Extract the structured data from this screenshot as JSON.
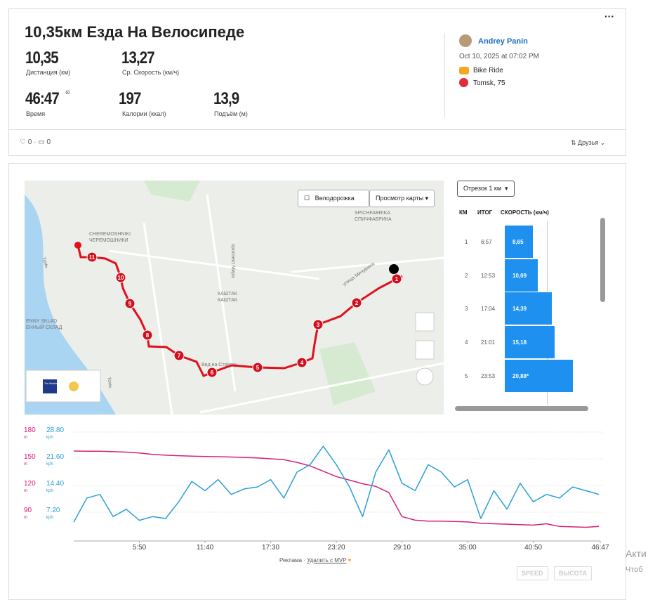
{
  "header": {
    "title": "10,35км Езда На Велосипеде",
    "menu": "···"
  },
  "stats": [
    {
      "value": "10,35",
      "label": "Дистанция (км)"
    },
    {
      "value": "13,27",
      "label": "Ср. Скорость (км/ч)"
    },
    {
      "value": "46:47",
      "label": "Время"
    },
    {
      "value": "197",
      "label": "Калории (ккал)"
    },
    {
      "value": "13,9",
      "label": "Подъём (м)"
    }
  ],
  "user": {
    "name": "Andrey Panin",
    "date": "Oct 10, 2025 at 07:02 PM",
    "activity": "Bike Ride",
    "location": "Tomsk, 75"
  },
  "social": {
    "likes": "0",
    "comments": "0",
    "visibility": "Друзья"
  },
  "map": {
    "bike_lane": "Велодорожка",
    "view": "Просмотр карты",
    "labels": [
      "Томь",
      "CHEREMOSHNIKI",
      "ЧЕРЕМОШНИКИ",
      "проспект Мира",
      "улица Мичурина",
      "КАШТАК",
      "КАШТАК",
      "SPICHFABRIKA",
      "СПИЧФАБРИКА",
      "ENNY SKLAD",
      "ЕННЫЙ СКЛАД",
      "Вид на Стрелку",
      "Томь"
    ],
    "weather": "The Weather Channel",
    "markers": [
      "1",
      "2",
      "3",
      "4",
      "5",
      "6",
      "7",
      "8",
      "9",
      "10",
      "11"
    ]
  },
  "splits": {
    "selector": "Отрезок 1 км",
    "columns": [
      "КМ",
      "ИТОГ",
      "СКОРОСТЬ (км/ч)"
    ],
    "km": [
      "1",
      "2",
      "3",
      "4",
      "5"
    ],
    "total": [
      "6:57",
      "12:53",
      "17:04",
      "21:01",
      "23:53"
    ],
    "speed": [
      8.65,
      10.09,
      14.39,
      15.18,
      20.88
    ],
    "value_labels": [
      "8,65",
      "10,09",
      "14,39",
      "15,18",
      "20,88*"
    ]
  },
  "chart_data": {
    "type": "line",
    "x": [
      0,
      70,
      140,
      210,
      280,
      350,
      420,
      490,
      560,
      630,
      700,
      770,
      840,
      910,
      980,
      1050,
      1120,
      1190,
      1260,
      1330,
      1400,
      1470,
      1540,
      1610,
      1680,
      1750,
      1820,
      1890,
      1960,
      2030,
      2100,
      2170,
      2240,
      2310,
      2380,
      2450,
      2520,
      2590,
      2660,
      2730,
      2800
    ],
    "xlim": [
      0,
      2807
    ],
    "xticks": [
      {
        "value": 350,
        "label": "5:50"
      },
      {
        "value": 700,
        "label": "11:40"
      },
      {
        "value": 1050,
        "label": "17:30"
      },
      {
        "value": 1400,
        "label": "23:20"
      },
      {
        "value": 1750,
        "label": "29:10"
      },
      {
        "value": 2100,
        "label": "35:00"
      },
      {
        "value": 2450,
        "label": "40:50"
      },
      {
        "value": 2807,
        "label": "46:47"
      }
    ],
    "ylim": [
      60,
      180
    ],
    "yticks": [
      90,
      120,
      150,
      180
    ],
    "y_unit": "m",
    "y2lim": [
      0,
      28.8
    ],
    "y2ticks": [
      {
        "value": 7.2,
        "label": "7.20"
      },
      {
        "value": 14.4,
        "label": "14.40"
      },
      {
        "value": 21.6,
        "label": "21.60"
      },
      {
        "value": 28.8,
        "label": "28.80"
      }
    ],
    "y2_unit": "kph",
    "grid": true,
    "series": [
      {
        "name": "ВЫСОТА",
        "color": "#d6207a",
        "values": [
          158.7,
          158.5,
          158.5,
          158,
          157.5,
          156.5,
          155,
          154,
          153.5,
          153,
          152.5,
          152.4,
          152,
          151.5,
          151,
          150,
          149,
          146,
          142,
          136,
          130,
          126,
          122,
          119,
          112,
          85,
          81,
          80,
          80,
          79.5,
          79,
          77.5,
          77,
          76.5,
          76,
          75.5,
          77,
          74,
          73.5,
          73,
          74
        ]
      },
      {
        "name": "SPEED",
        "color": "#2a9fd8",
        "axis": "y2",
        "values": [
          4.5,
          11,
          12,
          6,
          8,
          5,
          6,
          5.5,
          10,
          15.5,
          13,
          16,
          12,
          13.5,
          14,
          16,
          11,
          18,
          20,
          25,
          20,
          14,
          6,
          18,
          24,
          15,
          13,
          20,
          18,
          14,
          16,
          5.5,
          13,
          8,
          15,
          10,
          12,
          11,
          14,
          13,
          12
        ]
      }
    ]
  },
  "footer": {
    "ad": "Реклама",
    "remove": "Удалить с MVP",
    "activate": "Акти",
    "activate2": "Чтоб"
  }
}
